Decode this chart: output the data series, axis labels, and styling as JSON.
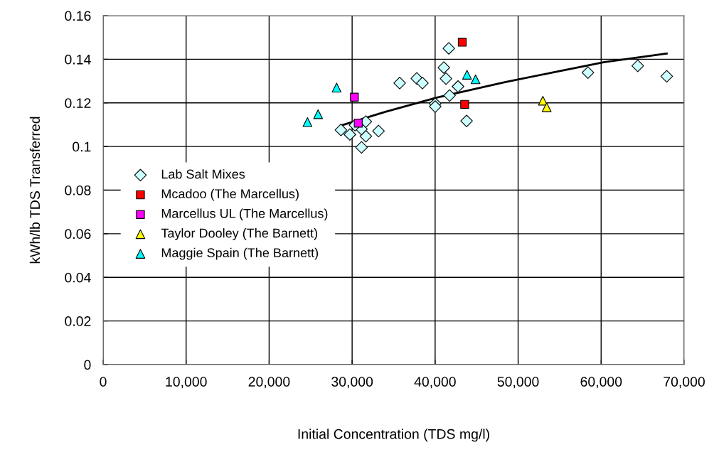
{
  "chart_data": {
    "type": "scatter",
    "xlabel": "Initial Concentration (TDS mg/l)",
    "ylabel": "kWh/lb TDS Transferred",
    "xlim": [
      0,
      70000
    ],
    "ylim": [
      0,
      0.16
    ],
    "xticks": [
      0,
      {
        "value": 10000,
        "label": "10,000"
      },
      {
        "value": 20000,
        "label": "20,000"
      },
      {
        "value": 30000,
        "label": "30,000"
      },
      {
        "value": 40000,
        "label": "40,000"
      },
      {
        "value": 50000,
        "label": "50,000"
      },
      {
        "value": 60000,
        "label": "60,000"
      },
      {
        "value": 70000,
        "label": "70,000"
      }
    ],
    "yticks": [
      0,
      0.02,
      0.04,
      0.06,
      0.08,
      0.1,
      0.12,
      0.14,
      0.16
    ],
    "grid": true,
    "legend": "center left",
    "series": [
      {
        "name": "Lab Salt Mixes",
        "color": "#ccffff",
        "marker": "diamond",
        "x": [
          28650,
          29730,
          31130,
          31650,
          31130,
          31650,
          33180,
          30350,
          35730,
          37790,
          38470,
          40010,
          40010,
          41050,
          41310,
          41650,
          42760,
          41740,
          43790,
          58410,
          64410,
          67900
        ],
        "values": [
          0.1076,
          0.1055,
          0.0996,
          0.1047,
          0.108,
          0.1114,
          0.1071,
          0.1098,
          0.1291,
          0.1312,
          0.1291,
          0.1196,
          0.1183,
          0.1362,
          0.1311,
          0.145,
          0.1275,
          0.1234,
          0.1117,
          0.1339,
          0.137,
          0.1322
        ]
      },
      {
        "name": "Mcadoo (The Marcellus)",
        "color": "#ff0000",
        "marker": "square",
        "x": [
          43270,
          43560
        ],
        "values": [
          0.1478,
          0.1193
        ]
      },
      {
        "name": "Marcellus UL (The Marcellus)",
        "color": "#ff00ff",
        "marker": "square",
        "x": [
          30270,
          30740
        ],
        "values": [
          0.1226,
          0.1107
        ]
      },
      {
        "name": "Taylor Dooley (The Barnett)",
        "color": "#ffff00",
        "marker": "triangle",
        "x": [
          52980,
          53440
        ],
        "values": [
          0.121,
          0.118
        ]
      },
      {
        "name": "Maggie Spain (The Barnett)",
        "color": "#00ffff",
        "marker": "triangle",
        "x": [
          24620,
          25900,
          28130,
          43840,
          44870
        ],
        "values": [
          0.1112,
          0.1148,
          0.127,
          0.1329,
          0.1308
        ]
      },
      {
        "type": "line",
        "color": "#000000",
        "marker": "none",
        "x": [
          28650,
          34000,
          40180,
          48400,
          54000,
          60400,
          67900
        ],
        "values": [
          0.1096,
          0.1159,
          0.1224,
          0.1295,
          0.1338,
          0.1387,
          0.1426
        ]
      }
    ]
  }
}
